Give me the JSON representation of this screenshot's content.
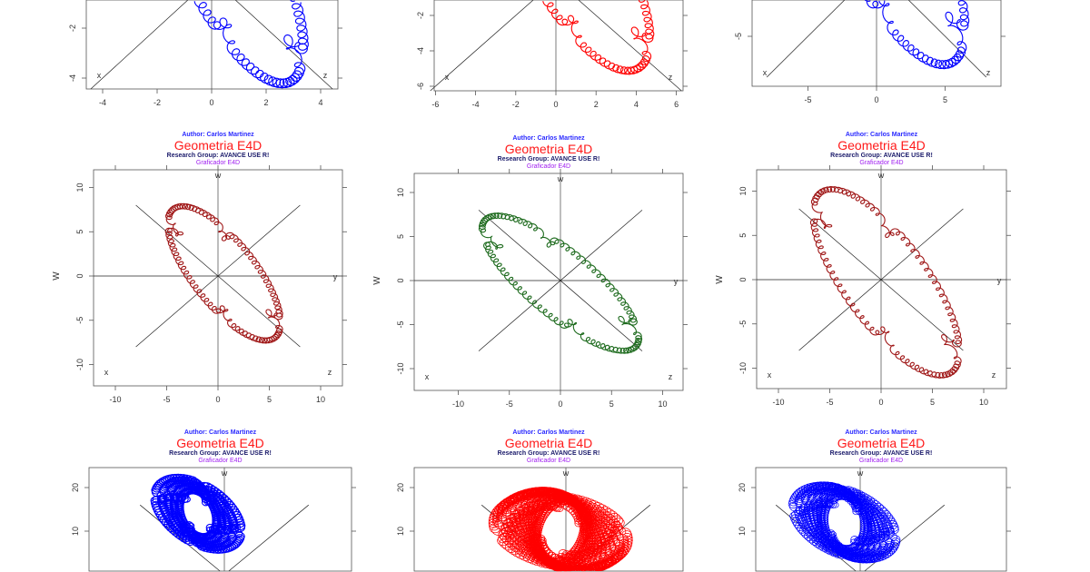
{
  "titles": {
    "author": "Author: Carlos Martinez",
    "main": "Geometria E4D",
    "group": "Research Group: AVANCE USE R!",
    "graficador": "Graficador E4D"
  },
  "colors": {
    "blue": "#0000ff",
    "red": "#ff0000",
    "darkred": "#a01818",
    "green": "#1e6b1e",
    "title_red": "#ff1a1a",
    "author_blue": "#2a2aff",
    "group_navy": "#1b1b6b",
    "graf_purple": "#a020f0"
  },
  "chart_data": [
    {
      "type": "line",
      "row": 1,
      "col": 1,
      "color": "#0000ff",
      "xticks": [
        "-4",
        "-2",
        "0",
        "2",
        "4"
      ],
      "xtick_values": [
        -4,
        -2,
        0,
        2,
        4
      ],
      "yticks": [
        "-2",
        "-4"
      ],
      "ytick_values": [
        -2,
        -4
      ],
      "axis_labels": {
        "x": "x",
        "z": "z"
      },
      "ylabel": "",
      "titles_visible": false
    },
    {
      "type": "line",
      "row": 1,
      "col": 2,
      "color": "#ff0000",
      "xticks": [
        "-6",
        "-4",
        "-2",
        "0",
        "2",
        "4",
        "6"
      ],
      "xtick_values": [
        -6,
        -4,
        -2,
        0,
        2,
        4,
        6
      ],
      "yticks": [
        "-2",
        "-4",
        "-6"
      ],
      "ytick_values": [
        -2,
        -4,
        -6
      ],
      "axis_labels": {
        "x": "x",
        "z": "z"
      },
      "ylabel": "",
      "titles_visible": false
    },
    {
      "type": "line",
      "row": 1,
      "col": 3,
      "color": "#0000ff",
      "xticks": [
        "-5",
        "0",
        "5"
      ],
      "xtick_values": [
        -5,
        0,
        5
      ],
      "yticks": [
        "-5"
      ],
      "ytick_values": [
        -5
      ],
      "axis_labels": {
        "x": "x",
        "z": "z"
      },
      "ylabel": "",
      "titles_visible": false
    },
    {
      "type": "line",
      "row": 2,
      "col": 1,
      "color": "#a01818",
      "xticks": [
        "-10",
        "-5",
        "0",
        "5",
        "10"
      ],
      "xtick_values": [
        -10,
        -5,
        0,
        5,
        10
      ],
      "yticks": [
        "10",
        "5",
        "0",
        "-5",
        "-10"
      ],
      "ytick_values": [
        10,
        5,
        0,
        -5,
        -10
      ],
      "axis_labels": {
        "x": "x",
        "z": "z",
        "w": "w",
        "y": "y"
      },
      "ylabel": "W",
      "titles_visible": true
    },
    {
      "type": "line",
      "row": 2,
      "col": 2,
      "color": "#1e6b1e",
      "xticks": [
        "-10",
        "-5",
        "0",
        "5",
        "10"
      ],
      "xtick_values": [
        -10,
        -5,
        0,
        5,
        10
      ],
      "yticks": [
        "10",
        "5",
        "0",
        "-5",
        "-10"
      ],
      "ytick_values": [
        10,
        5,
        0,
        -5,
        -10
      ],
      "axis_labels": {
        "x": "x",
        "z": "z",
        "w": "w",
        "y": "y"
      },
      "ylabel": "W",
      "titles_visible": true
    },
    {
      "type": "line",
      "row": 2,
      "col": 3,
      "color": "#a01818",
      "xticks": [
        "-10",
        "-5",
        "0",
        "5",
        "10"
      ],
      "xtick_values": [
        -10,
        -5,
        0,
        5,
        10
      ],
      "yticks": [
        "10",
        "5",
        "0",
        "-5",
        "-10"
      ],
      "ytick_values": [
        10,
        5,
        0,
        -5,
        -10
      ],
      "axis_labels": {
        "x": "x",
        "z": "z",
        "w": "w",
        "y": "y"
      },
      "ylabel": "W",
      "titles_visible": true
    },
    {
      "type": "line",
      "row": 3,
      "col": 1,
      "color": "#0000ff",
      "xticks": [],
      "xtick_values": [],
      "yticks": [
        "20",
        "10"
      ],
      "ytick_values": [
        20,
        10
      ],
      "axis_labels": {
        "w": "w"
      },
      "ylabel": "",
      "titles_visible": true
    },
    {
      "type": "line",
      "row": 3,
      "col": 2,
      "color": "#ff0000",
      "xticks": [],
      "xtick_values": [],
      "yticks": [
        "20",
        "10"
      ],
      "ytick_values": [
        20,
        10
      ],
      "axis_labels": {
        "w": "w"
      },
      "ylabel": "",
      "titles_visible": true
    },
    {
      "type": "line",
      "row": 3,
      "col": 3,
      "color": "#0000ff",
      "xticks": [],
      "xtick_values": [],
      "yticks": [
        "20",
        "10"
      ],
      "ytick_values": [
        20,
        10
      ],
      "axis_labels": {
        "w": "w"
      },
      "ylabel": "",
      "titles_visible": true
    }
  ]
}
